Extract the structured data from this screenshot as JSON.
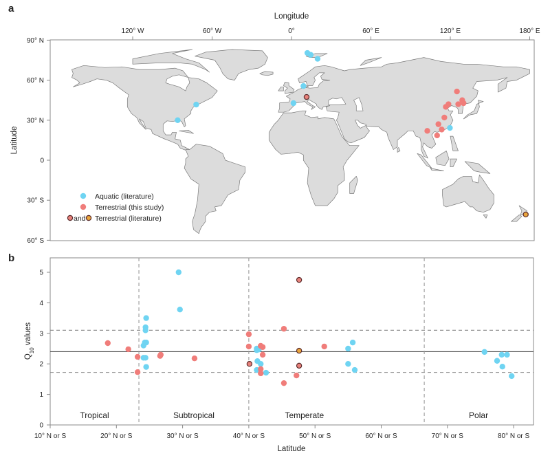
{
  "colors": {
    "aquatic": "#6fd4f2",
    "terrestrial_this_study": "#f07d7a",
    "terrestrial_lit_red": "#e8827c",
    "terrestrial_lit_orange": "#e9a53c",
    "outline": "#5b2b2b",
    "land": "#dcdcdc",
    "coast": "#7a7a7a"
  },
  "chart_data": [
    {
      "panel": "a",
      "type": "scatter",
      "subtype": "map",
      "xlabel": "Longitude",
      "ylabel": "Latitude",
      "xlim": [
        -182,
        183
      ],
      "ylim": [
        -60,
        90
      ],
      "x_ticks": [
        {
          "v": -120,
          "label": "120° W"
        },
        {
          "v": -60,
          "label": "60° W"
        },
        {
          "v": 0,
          "label": "0°"
        },
        {
          "v": 60,
          "label": "60° E"
        },
        {
          "v": 120,
          "label": "120° E"
        },
        {
          "v": 180,
          "label": "180° E"
        }
      ],
      "y_ticks": [
        {
          "v": 90,
          "label": "90° N"
        },
        {
          "v": 60,
          "label": "60° N"
        },
        {
          "v": 30,
          "label": "30° N"
        },
        {
          "v": 0,
          "label": "0"
        },
        {
          "v": -30,
          "label": "30° S"
        },
        {
          "v": -60,
          "label": "60° S"
        }
      ],
      "legend": {
        "placement": "bottom-left",
        "entries": [
          {
            "key": "aquatic",
            "label": "Aquatic (literature)"
          },
          {
            "key": "terrestrial_this_study",
            "label": "Terrestrial (this study)"
          },
          {
            "key": "terrestrial_lit",
            "label": "Terrestrial (literature)",
            "joiner": "and"
          }
        ]
      },
      "points": {
        "aquatic": [
          [
            12,
            80.4
          ],
          [
            14.5,
            79
          ],
          [
            19.7,
            76
          ],
          [
            9,
            55.6
          ],
          [
            1.5,
            42.8
          ],
          [
            119.7,
            24.2
          ],
          [
            -72,
            41.7
          ],
          [
            -86,
            30
          ]
        ],
        "terrestrial_this_study": [
          [
            125,
            51.5
          ],
          [
            129,
            45
          ],
          [
            130,
            42.8
          ],
          [
            126,
            42
          ],
          [
            118.6,
            42
          ],
          [
            116.6,
            40
          ],
          [
            115.5,
            32
          ],
          [
            111,
            27
          ],
          [
            113.5,
            23
          ],
          [
            102.6,
            22
          ],
          [
            110,
            18.6
          ]
        ],
        "terrestrial_lit_red": [
          [
            11.4,
            47.4
          ]
        ],
        "terrestrial_lit_orange": [
          [
            177,
            -40.7
          ]
        ]
      }
    },
    {
      "panel": "b",
      "type": "scatter",
      "xlabel": "Latitude",
      "ylabel": "Q",
      "ylabel_sub": "10",
      "ylabel_suffix": " values",
      "xlim": [
        10,
        83
      ],
      "ylim": [
        0,
        5.47
      ],
      "grid": false,
      "x_ticks": [
        {
          "v": 10,
          "label": "10° N or S"
        },
        {
          "v": 20,
          "label": "20° N or S"
        },
        {
          "v": 30,
          "label": "30° N or S"
        },
        {
          "v": 40,
          "label": "40° N or S"
        },
        {
          "v": 50,
          "label": "50° N or S"
        },
        {
          "v": 60,
          "label": "60° N or S"
        },
        {
          "v": 70,
          "label": "70° N or S"
        },
        {
          "v": 80,
          "label": "80° N or S"
        }
      ],
      "y_ticks": [
        0,
        1,
        2,
        3,
        4,
        5
      ],
      "hlines": [
        {
          "y": 2.4,
          "style": "solid"
        },
        {
          "y": 3.1,
          "style": "dashed"
        },
        {
          "y": 1.72,
          "style": "dashed"
        }
      ],
      "vlines": [
        {
          "x": 23.4,
          "style": "dashed"
        },
        {
          "x": 40.0,
          "style": "dashed"
        },
        {
          "x": 66.5,
          "style": "dashed"
        }
      ],
      "regions": [
        {
          "label": "Tropical",
          "x": 16.7
        },
        {
          "label": "Subtropical",
          "x": 31.7
        },
        {
          "label": "Temperate",
          "x": 48.4
        },
        {
          "label": "Polar",
          "x": 74.7
        }
      ],
      "series": {
        "aquatic": [
          [
            29.4,
            5.0
          ],
          [
            29.6,
            3.78
          ],
          [
            24.5,
            3.5
          ],
          [
            24.4,
            3.2
          ],
          [
            24.4,
            3.1
          ],
          [
            24.5,
            2.7
          ],
          [
            24.3,
            2.7
          ],
          [
            24.1,
            2.6
          ],
          [
            24.4,
            2.2
          ],
          [
            24.1,
            2.2
          ],
          [
            24.5,
            1.9
          ],
          [
            41.2,
            2.5
          ],
          [
            41.2,
            2.45
          ],
          [
            41.5,
            2.47
          ],
          [
            41.3,
            2.09
          ],
          [
            41.8,
            2.0
          ],
          [
            41.2,
            1.8
          ],
          [
            42.6,
            1.71
          ],
          [
            55.7,
            2.7
          ],
          [
            55.0,
            2.5
          ],
          [
            55.0,
            2.0
          ],
          [
            56.0,
            1.8
          ],
          [
            75.6,
            2.39
          ],
          [
            78.2,
            2.3
          ],
          [
            79.0,
            2.3
          ],
          [
            77.5,
            2.1
          ],
          [
            78.3,
            1.91
          ],
          [
            79.7,
            1.6
          ]
        ],
        "terrestrial_this_study": [
          [
            18.7,
            2.68
          ],
          [
            21.8,
            2.48
          ],
          [
            23.2,
            2.23
          ],
          [
            23.2,
            1.73
          ],
          [
            26.7,
            2.3
          ],
          [
            26.6,
            2.26
          ],
          [
            31.8,
            2.18
          ],
          [
            40.0,
            2.97
          ],
          [
            40.0,
            2.57
          ],
          [
            41.8,
            2.59
          ],
          [
            42.1,
            2.55
          ],
          [
            42.1,
            2.3
          ],
          [
            41.8,
            1.83
          ],
          [
            41.8,
            1.69
          ],
          [
            45.3,
            3.15
          ],
          [
            45.3,
            1.37
          ],
          [
            47.2,
            1.62
          ],
          [
            51.4,
            2.57
          ]
        ],
        "terrestrial_lit_red": [
          [
            40.1,
            2.0
          ],
          [
            47.6,
            4.75
          ],
          [
            47.6,
            1.94
          ]
        ],
        "terrestrial_lit_orange": [
          [
            47.6,
            2.43
          ]
        ]
      }
    }
  ]
}
